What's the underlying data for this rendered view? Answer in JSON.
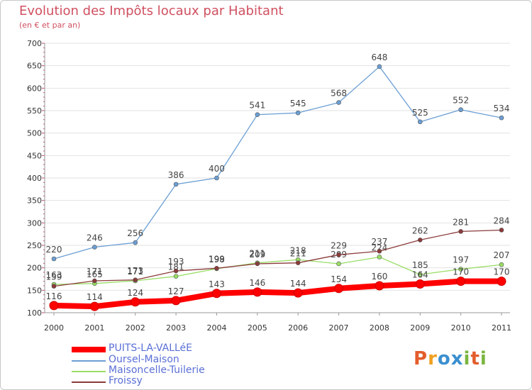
{
  "header": {
    "title": "Evolution des Impôts locaux par Habitant",
    "subtitle": "(en € et par an)"
  },
  "logo": {
    "text": "Proxiti"
  },
  "chart_data": {
    "type": "line",
    "title": "Evolution des Impôts locaux par Habitant",
    "subtitle": "(en € et par an)",
    "categories": [
      "2000",
      "2001",
      "2002",
      "2003",
      "2004",
      "2005",
      "2006",
      "2007",
      "2008",
      "2009",
      "2010",
      "2011"
    ],
    "y_ticks": [
      "100",
      "150",
      "200",
      "250",
      "300",
      "350",
      "400",
      "450",
      "500",
      "550",
      "600",
      "650",
      "700"
    ],
    "ylim": [
      100,
      700
    ],
    "grid": "horizontal",
    "legend_position": "bottom-left",
    "series": [
      {
        "name": "PUITS-LA-VALLéE",
        "color": "#ff0000",
        "values": [
          116,
          114,
          124,
          127,
          143,
          146,
          144,
          154,
          160,
          164,
          170,
          170
        ]
      },
      {
        "name": "Oursel-Maison",
        "color": "#6b9fd4",
        "values": [
          220,
          246,
          256,
          386,
          400,
          541,
          545,
          568,
          648,
          525,
          552,
          534
        ]
      },
      {
        "name": "Maisoncelle-Tuilerie",
        "color": "#99dd66",
        "values": [
          163,
          165,
          171,
          181,
          198,
          211,
          218,
          209,
          224,
          185,
          197,
          207
        ]
      },
      {
        "name": "Froissy",
        "color": "#8b3a3a",
        "values": [
          159,
          171,
          173,
          193,
          199,
          209,
          211,
          229,
          237,
          262,
          281,
          284
        ]
      }
    ]
  }
}
